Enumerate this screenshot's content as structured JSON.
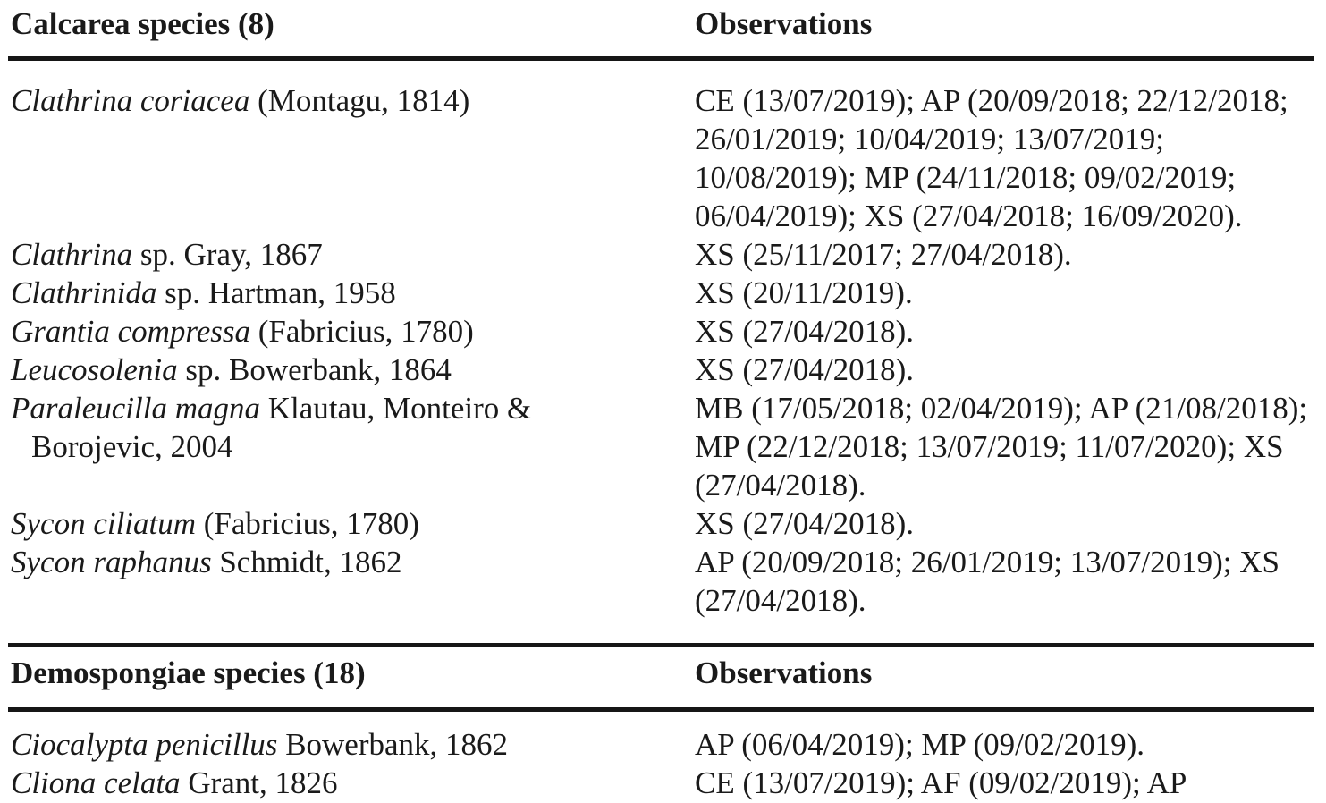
{
  "table": {
    "sections": [
      {
        "header": {
          "species_label": "Calcarea species (8)",
          "obs_label": "Observations"
        },
        "rows": [
          {
            "species_italic": "Clathrina coriacea",
            "species_roman": " (Montagu, 1814)",
            "observations": "CE (13/07/2019); AP (20/09/2018; 22/12/2018;\n26/01/2019; 10/04/2019; 13/07/2019;\n10/08/2019); MP (24/11/2018; 09/02/2019;\n06/04/2019); XS (27/04/2018; 16/09/2020)."
          },
          {
            "species_italic": "Clathrina",
            "species_roman": " sp. Gray, 1867",
            "observations": "XS (25/11/2017; 27/04/2018)."
          },
          {
            "species_italic": "Clathrinida",
            "species_roman": " sp. Hartman, 1958",
            "observations": "XS (20/11/2019)."
          },
          {
            "species_italic": "Grantia compressa",
            "species_roman": " (Fabricius, 1780)",
            "observations": "XS (27/04/2018)."
          },
          {
            "species_italic": "Leucosolenia",
            "species_roman": " sp. Bowerbank, 1864",
            "observations": "XS (27/04/2018)."
          },
          {
            "species_italic": "Paraleucilla magna",
            "species_roman": " Klautau, Monteiro &\nBorojevic, 2004",
            "observations": "MB (17/05/2018; 02/04/2019); AP (21/08/2018);\nMP (22/12/2018; 13/07/2019; 11/07/2020); XS\n(27/04/2018)."
          },
          {
            "species_italic": "Sycon ciliatum",
            "species_roman": " (Fabricius, 1780)",
            "observations": "XS (27/04/2018)."
          },
          {
            "species_italic": "Sycon raphanus",
            "species_roman": " Schmidt, 1862",
            "observations": "AP (20/09/2018; 26/01/2019; 13/07/2019); XS\n(27/04/2018)."
          }
        ]
      },
      {
        "header": {
          "species_label": "Demospongiae species (18)",
          "obs_label": "Observations"
        },
        "rows": [
          {
            "species_italic": "Ciocalypta penicillus",
            "species_roman": " Bowerbank, 1862",
            "observations": "AP (06/04/2019); MP (09/02/2019)."
          },
          {
            "species_italic": "Cliona celata",
            "species_roman": " Grant, 1826",
            "observations": "CE (13/07/2019); AF (09/02/2019); AP"
          }
        ]
      }
    ]
  }
}
